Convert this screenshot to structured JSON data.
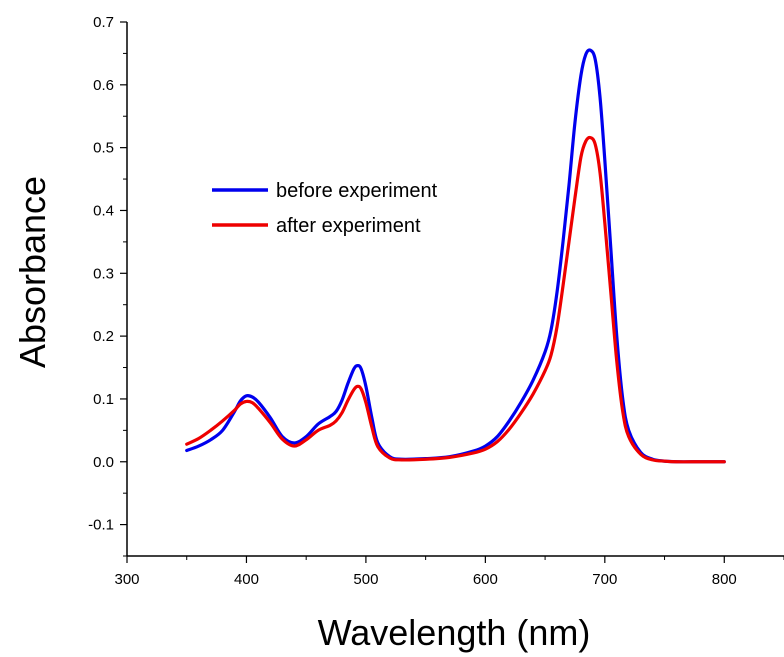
{
  "chart_data": {
    "type": "line",
    "title": "",
    "xlabel": "Wavelength (nm)",
    "ylabel": "Absorbance",
    "xlim": [
      300,
      850
    ],
    "ylim": [
      -0.15,
      0.7
    ],
    "xticks": [
      300,
      400,
      500,
      600,
      700,
      800
    ],
    "xtick_labels": [
      "300",
      "400",
      "500",
      "600",
      "700",
      "800"
    ],
    "yticks": [
      -0.1,
      0.0,
      0.1,
      0.2,
      0.3,
      0.4,
      0.5,
      0.6,
      0.7
    ],
    "ytick_labels": [
      "-0.1",
      "0.0",
      "0.1",
      "0.2",
      "0.3",
      "0.4",
      "0.5",
      "0.6",
      "0.7"
    ],
    "grid": false,
    "legend_position": "upper-left",
    "series": [
      {
        "name": "before experiment",
        "color": "#0000ee",
        "x": [
          350,
          360,
          370,
          380,
          390,
          395,
          400,
          405,
          410,
          420,
          430,
          440,
          450,
          460,
          470,
          475,
          480,
          485,
          490,
          493,
          496,
          500,
          505,
          510,
          520,
          530,
          550,
          570,
          590,
          600,
          610,
          620,
          630,
          640,
          650,
          655,
          660,
          665,
          670,
          675,
          680,
          684,
          688,
          692,
          696,
          700,
          705,
          710,
          715,
          720,
          730,
          740,
          750,
          760,
          780,
          800
        ],
        "y": [
          0.018,
          0.025,
          0.035,
          0.05,
          0.08,
          0.097,
          0.105,
          0.103,
          0.095,
          0.07,
          0.04,
          0.03,
          0.04,
          0.06,
          0.072,
          0.08,
          0.098,
          0.125,
          0.148,
          0.153,
          0.148,
          0.12,
          0.07,
          0.03,
          0.008,
          0.004,
          0.005,
          0.008,
          0.017,
          0.025,
          0.04,
          0.065,
          0.095,
          0.13,
          0.175,
          0.21,
          0.27,
          0.35,
          0.44,
          0.54,
          0.615,
          0.648,
          0.655,
          0.64,
          0.58,
          0.48,
          0.34,
          0.2,
          0.1,
          0.05,
          0.015,
          0.004,
          0.001,
          0.0,
          0.0,
          0.0
        ]
      },
      {
        "name": "after experiment",
        "color": "#ee0000",
        "x": [
          350,
          360,
          370,
          380,
          390,
          395,
          400,
          405,
          410,
          420,
          430,
          440,
          450,
          460,
          470,
          475,
          480,
          485,
          490,
          493,
          496,
          500,
          505,
          510,
          520,
          530,
          550,
          570,
          590,
          600,
          610,
          620,
          630,
          640,
          650,
          655,
          660,
          665,
          670,
          675,
          680,
          684,
          688,
          692,
          696,
          700,
          705,
          710,
          715,
          720,
          730,
          740,
          750,
          760,
          780,
          800
        ],
        "y": [
          0.028,
          0.037,
          0.05,
          0.065,
          0.082,
          0.092,
          0.096,
          0.094,
          0.085,
          0.062,
          0.036,
          0.025,
          0.035,
          0.05,
          0.058,
          0.065,
          0.078,
          0.098,
          0.115,
          0.12,
          0.116,
          0.094,
          0.055,
          0.024,
          0.006,
          0.003,
          0.004,
          0.007,
          0.014,
          0.02,
          0.032,
          0.052,
          0.078,
          0.108,
          0.145,
          0.17,
          0.215,
          0.28,
          0.35,
          0.42,
          0.485,
          0.51,
          0.516,
          0.505,
          0.46,
          0.38,
          0.27,
          0.16,
          0.08,
          0.04,
          0.012,
          0.003,
          0.001,
          0.0,
          0.0,
          0.0
        ]
      }
    ]
  }
}
